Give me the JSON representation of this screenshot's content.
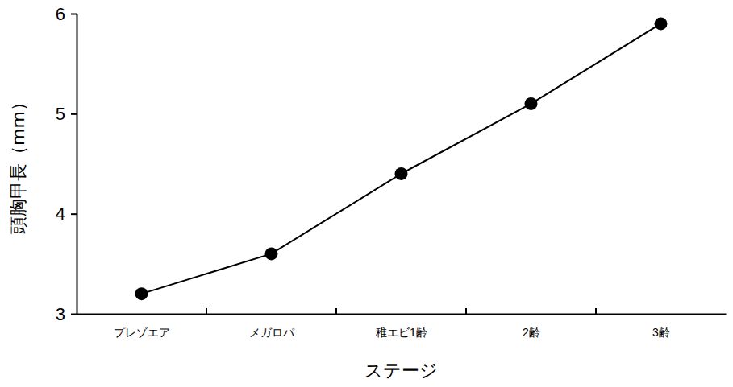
{
  "chart_data": {
    "type": "line",
    "x_label": "ステージ",
    "y_label": "頭胸甲長（mm）",
    "categories": [
      "プレゾエア",
      "メガロパ",
      "稚エビ1齢",
      "2齢",
      "3齢"
    ],
    "values": [
      3.2,
      3.6,
      4.4,
      5.1,
      5.9
    ],
    "color": "#000000",
    "marker": "circle",
    "line_style": "solid",
    "ylim": [
      3,
      6
    ],
    "yticks": [
      3,
      4,
      5,
      6
    ],
    "grid": false
  }
}
